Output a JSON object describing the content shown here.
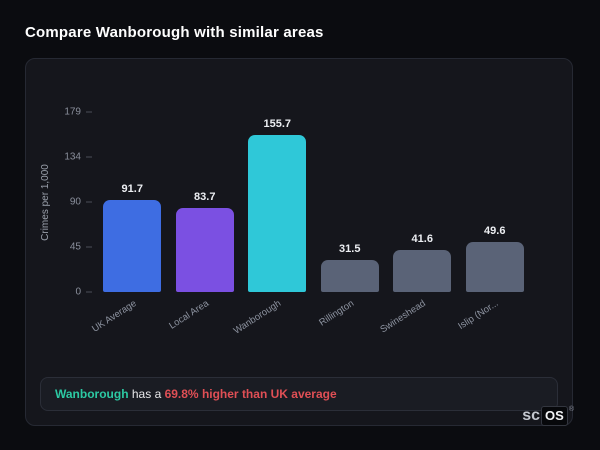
{
  "page": {
    "title": "Compare Wanborough with similar areas"
  },
  "chart_data": {
    "type": "bar",
    "title": "",
    "xlabel": "",
    "ylabel": "Crimes per 1,000",
    "categories": [
      "UK Average",
      "Local Area",
      "Wanborough",
      "Rillington",
      "Swineshead",
      "Islip (Nor..."
    ],
    "values": [
      91.7,
      83.7,
      155.7,
      31.5,
      41.6,
      49.6
    ],
    "bar_colors": [
      "#3e6de2",
      "#7b50e2",
      "#2fc8d8",
      "#5a6377",
      "#5a6377",
      "#5a6377"
    ],
    "yticks": [
      0,
      45,
      90,
      134,
      179
    ],
    "ylim": [
      0,
      179
    ],
    "grid": false,
    "legend": "none"
  },
  "annotation": {
    "area_name": "Wanborough",
    "connector_text": " has a ",
    "stat_text": "69.8% higher than UK average",
    "area_color": "#2cc9a3",
    "stat_color": "#e04f55"
  },
  "branding": {
    "prefix": "sc",
    "boxed": "OS",
    "registered": "®"
  },
  "colors": {
    "background": "#0b0c10",
    "card_background": "#15161c",
    "card_border": "#262933"
  }
}
